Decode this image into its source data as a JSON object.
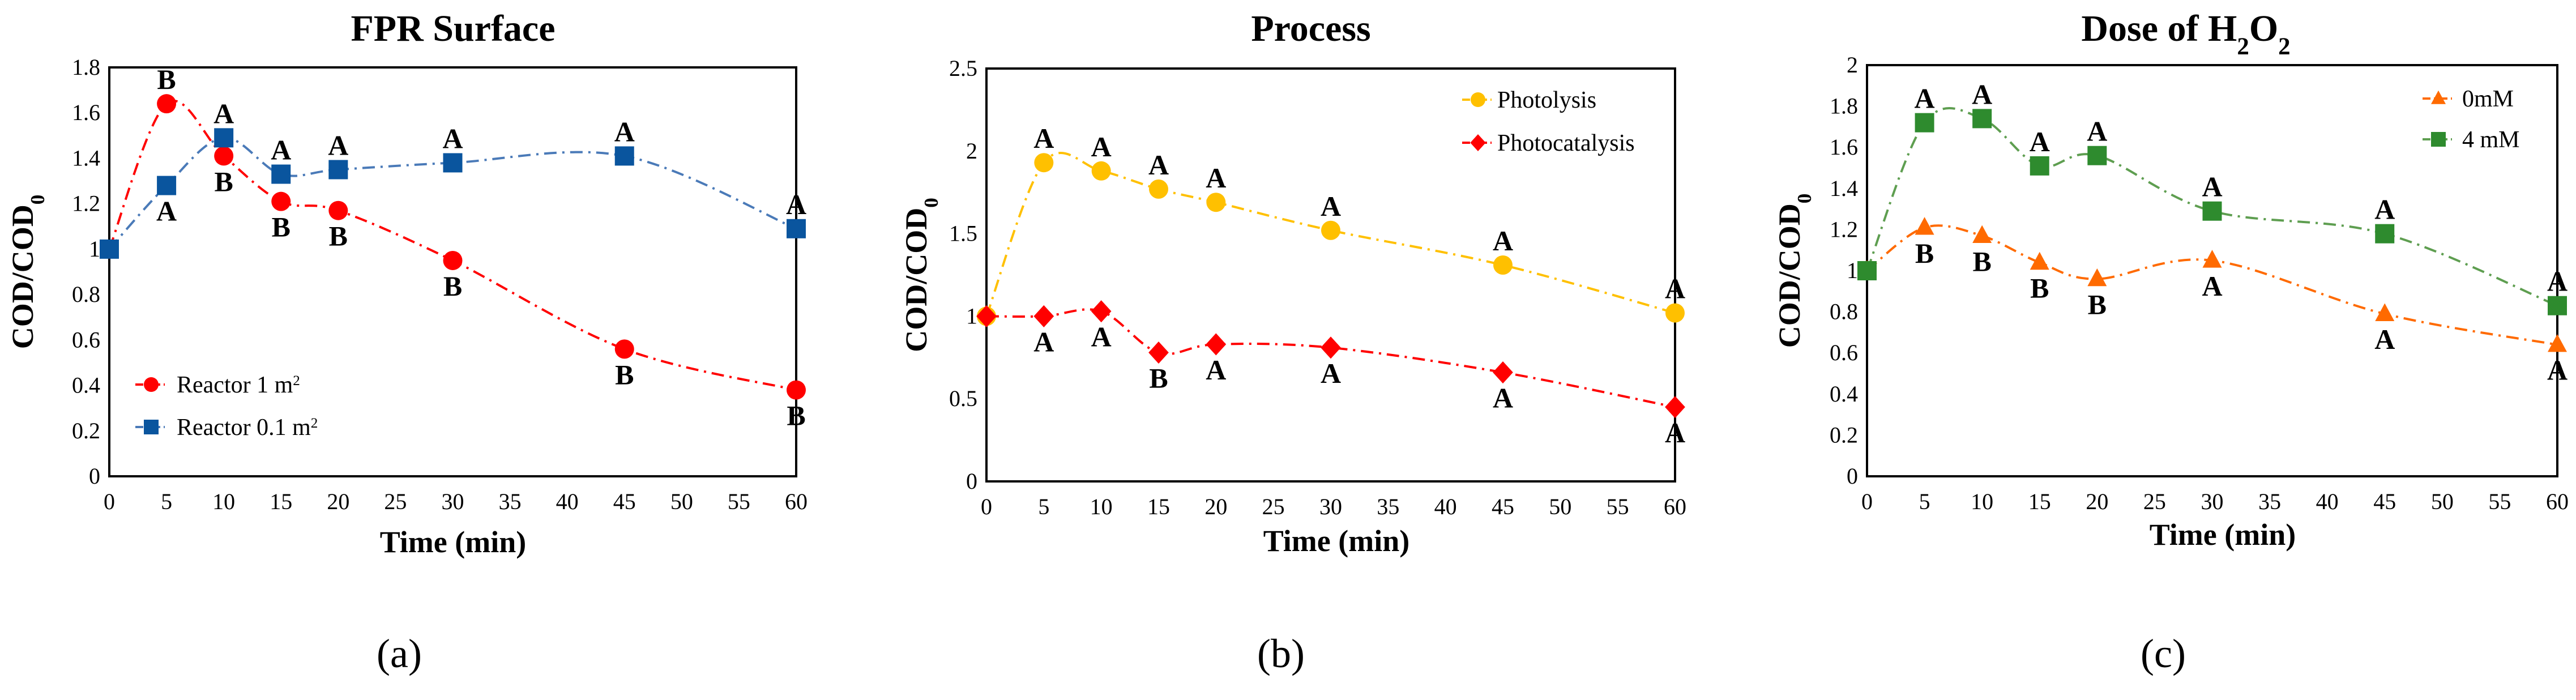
{
  "chart_data": [
    {
      "type": "line",
      "panel_label": "(a)",
      "title": "FPR Surface",
      "xlabel": "Time (min)",
      "ylabel": "COD/COD0",
      "xlim": [
        0,
        60
      ],
      "ylim": [
        0,
        1.8
      ],
      "xticks": [
        "0",
        "5",
        "10",
        "15",
        "20",
        "25",
        "30",
        "35",
        "40",
        "45",
        "50",
        "55",
        "60"
      ],
      "yticks": [
        "0",
        "0.2",
        "0.4",
        "0.6",
        "0.8",
        "1",
        "1.2",
        "1.4",
        "1.6",
        "1.8"
      ],
      "legend": "bottom-left",
      "grid": false,
      "x": [
        0,
        5,
        10,
        15,
        20,
        30,
        45,
        60
      ],
      "series": [
        {
          "name": "Reactor 1 m2",
          "color": "#ff0000",
          "marker": "circle",
          "values": [
            1,
            1.64,
            1.41,
            1.21,
            1.17,
            0.95,
            0.56,
            0.38
          ],
          "letters": [
            "",
            "B",
            "B",
            "B",
            "B",
            "B",
            "B",
            "B"
          ]
        },
        {
          "name": "Reactor 0.1 m2",
          "color": "#0a559e",
          "marker": "square",
          "values": [
            1,
            1.28,
            1.49,
            1.33,
            1.35,
            1.38,
            1.41,
            1.09
          ],
          "letters": [
            "",
            "A",
            "A",
            "A",
            "A",
            "A",
            "A",
            "A"
          ]
        }
      ]
    },
    {
      "type": "line",
      "panel_label": "(b)",
      "title": "Process",
      "xlabel": "Time (min)",
      "ylabel": "COD/COD0",
      "xlim": [
        0,
        60
      ],
      "ylim": [
        0,
        2.5
      ],
      "xticks": [
        "0",
        "5",
        "10",
        "15",
        "20",
        "25",
        "30",
        "35",
        "40",
        "45",
        "50",
        "55",
        "60"
      ],
      "yticks": [
        "0",
        "0.5",
        "1",
        "1.5",
        "2",
        "2.5"
      ],
      "legend": "top-right",
      "grid": false,
      "x": [
        0,
        5,
        10,
        15,
        20,
        30,
        45,
        60
      ],
      "series": [
        {
          "name": "Photolysis",
          "color": "#ffc000",
          "marker": "circle",
          "values": [
            1,
            1.93,
            1.88,
            1.77,
            1.69,
            1.52,
            1.31,
            1.02
          ],
          "letters": [
            "",
            "A",
            "A",
            "A",
            "A",
            "A",
            "A",
            "A"
          ]
        },
        {
          "name": "Photocatalysis",
          "color": "#ff0000",
          "marker": "diamond",
          "values": [
            1,
            1.0,
            1.03,
            0.78,
            0.83,
            0.81,
            0.66,
            0.45
          ],
          "letters": [
            "",
            "A",
            "A",
            "B",
            "A",
            "A",
            "A",
            "A"
          ]
        }
      ]
    },
    {
      "type": "line",
      "panel_label": "(c)",
      "title": "Dose of H2O2",
      "xlabel": "Time (min)",
      "ylabel": "COD/COD0",
      "xlim": [
        0,
        60
      ],
      "ylim": [
        0,
        2
      ],
      "xticks": [
        "0",
        "5",
        "10",
        "15",
        "20",
        "25",
        "30",
        "35",
        "40",
        "45",
        "50",
        "55",
        "60"
      ],
      "yticks": [
        "0",
        "0.2",
        "0.4",
        "0.6",
        "0.8",
        "1",
        "1.2",
        "1.4",
        "1.6",
        "1.8",
        "2"
      ],
      "legend": "top-right",
      "grid": false,
      "x": [
        0,
        5,
        10,
        15,
        20,
        30,
        45,
        60
      ],
      "series": [
        {
          "name": "0mM",
          "color": "#ff6a00",
          "marker": "triangle",
          "values": [
            1,
            1.21,
            1.17,
            1.04,
            0.96,
            1.05,
            0.79,
            0.64
          ],
          "letters": [
            "",
            "B",
            "B",
            "B",
            "B",
            "A",
            "A",
            "A"
          ]
        },
        {
          "name": "4 mM",
          "color": "#2e8b2e",
          "marker": "square",
          "values": [
            1,
            1.72,
            1.74,
            1.51,
            1.56,
            1.29,
            1.18,
            0.83
          ],
          "letters": [
            "",
            "A",
            "A",
            "A",
            "A",
            "A",
            "A",
            "A"
          ]
        }
      ]
    }
  ]
}
